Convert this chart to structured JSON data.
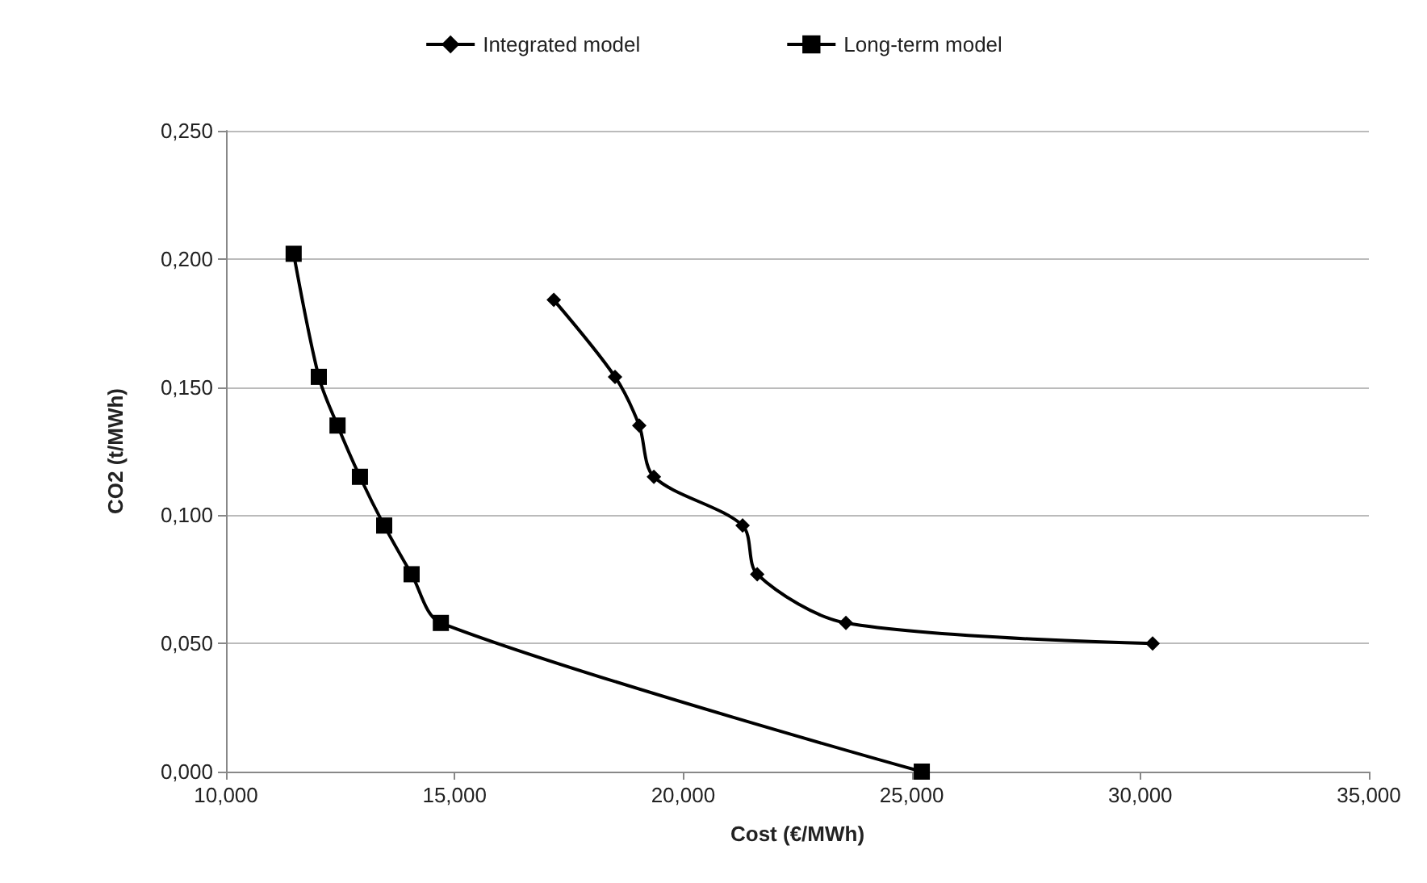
{
  "chart_data": {
    "type": "line",
    "xlabel": "Cost (€/MWh)",
    "ylabel": "CO2 (t/MWh)",
    "xlim": [
      10,
      35
    ],
    "xticks": [
      {
        "value": 10,
        "label": "10,000"
      },
      {
        "value": 15,
        "label": "15,000"
      },
      {
        "value": 20,
        "label": "20,000"
      },
      {
        "value": 25,
        "label": "25,000"
      },
      {
        "value": 30,
        "label": "30,000"
      },
      {
        "value": 35,
        "label": "35,000"
      }
    ],
    "ylim": [
      0,
      0.25
    ],
    "yticks": [
      {
        "value": 0,
        "label": "0,000"
      },
      {
        "value": 0.05,
        "label": "0,050"
      },
      {
        "value": 0.1,
        "label": "0,100"
      },
      {
        "value": 0.15,
        "label": "0,150"
      },
      {
        "value": 0.2,
        "label": "0,200"
      },
      {
        "value": 0.25,
        "label": "0,250"
      }
    ],
    "grid": "y",
    "legend": "top",
    "series": [
      {
        "name": "Integrated model",
        "color": "#000000",
        "marker": "diamond",
        "x": [
          17.17,
          18.51,
          19.04,
          19.36,
          21.3,
          21.62,
          23.56,
          30.27
        ],
        "values": [
          0.184,
          0.154,
          0.135,
          0.115,
          0.096,
          0.077,
          0.058,
          0.05
        ]
      },
      {
        "name": "Long-term model",
        "color": "#000000",
        "marker": "square",
        "x": [
          11.48,
          12.03,
          12.44,
          12.93,
          13.46,
          14.06,
          14.7,
          25.22
        ],
        "values": [
          0.202,
          0.154,
          0.135,
          0.115,
          0.096,
          0.077,
          0.058,
          0
        ]
      }
    ]
  }
}
